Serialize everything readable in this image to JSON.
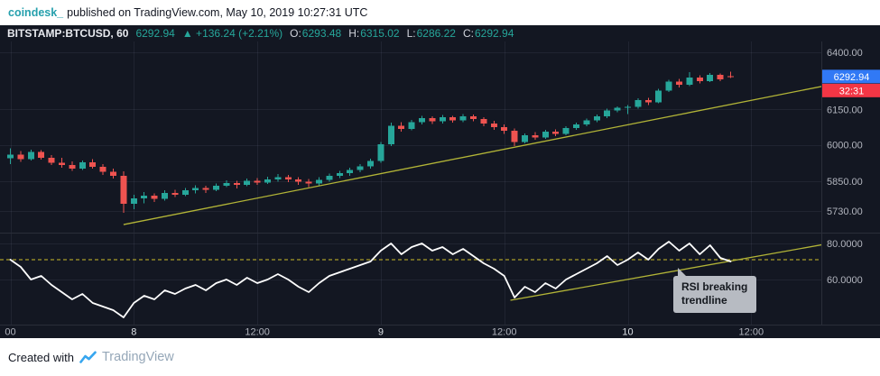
{
  "attribution": {
    "username": "coindesk_",
    "rest": "published on TradingView.com, May 10, 2019 10:27:31 UTC"
  },
  "legend": {
    "symbol": "BITSTAMP:BTCUSD, 60",
    "last": "6292.94",
    "change": "▲ +136.24 (+2.21%)",
    "ohlc": [
      {
        "label": "O:",
        "value": "6293.48"
      },
      {
        "label": "H:",
        "value": "6315.02"
      },
      {
        "label": "L:",
        "value": "6286.22"
      },
      {
        "label": "C:",
        "value": "6292.94"
      }
    ]
  },
  "tooltip": {
    "line1": "RSI breaking",
    "line2": "trendline"
  },
  "footer": {
    "created_with": "Created with",
    "brand": "TradingView"
  },
  "colors": {
    "bg": "#131722",
    "panel_bg": "#ffffff",
    "up": "#26a69a",
    "down": "#ef5350",
    "grid": "rgba(151,161,187,0.10)",
    "separator": "#2a2e39",
    "axis_text": "#b2b5be",
    "axis_text_bright": "#dde1e6",
    "trendline": "#b2b437",
    "rsi_line": "#ffffff",
    "rsi_band": "#cdbd2a",
    "price_badge_bg": "#3179f5",
    "countdown_badge_bg": "#f23645",
    "legend_green": "#26a69a",
    "username_teal": "#26a0ad",
    "tooltip_bg": "#b7bbc2",
    "tooltip_text": "#15191f",
    "tv_logo_blue": "#37a6ef",
    "tv_brand_text": "#95a7b8"
  },
  "chart_data": {
    "type": "candlestick+rsi",
    "symbol": "BITSTAMP:BTCUSD",
    "interval_minutes": 60,
    "price_scale": "log",
    "last_price": {
      "label": "6292.94",
      "value": 6292.94
    },
    "bar_countdown": "32:31",
    "price_axis_ticks": [
      {
        "label": "6400.00",
        "value": 6400
      },
      {
        "label": "6150.00",
        "value": 6150
      },
      {
        "label": "6000.00",
        "value": 6000
      },
      {
        "label": "5850.00",
        "value": 5850
      },
      {
        "label": "5730.00",
        "value": 5730
      }
    ],
    "time_axis_ticks": [
      {
        "label": "00",
        "index": 0,
        "major": false
      },
      {
        "label": "8",
        "index": 12,
        "major": true
      },
      {
        "label": "12:00",
        "index": 24,
        "major": false
      },
      {
        "label": "9",
        "index": 36,
        "major": true
      },
      {
        "label": "12:00",
        "index": 48,
        "major": false
      },
      {
        "label": "10",
        "index": 60,
        "major": true
      },
      {
        "label": "12:00",
        "index": 72,
        "major": false
      }
    ],
    "candles": [
      [
        5945,
        5985,
        5920,
        5960
      ],
      [
        5960,
        5975,
        5930,
        5940
      ],
      [
        5940,
        5980,
        5935,
        5970
      ],
      [
        5970,
        5978,
        5938,
        5946
      ],
      [
        5946,
        5958,
        5916,
        5926
      ],
      [
        5926,
        5946,
        5906,
        5916
      ],
      [
        5916,
        5932,
        5892,
        5902
      ],
      [
        5902,
        5936,
        5896,
        5928
      ],
      [
        5928,
        5941,
        5901,
        5909
      ],
      [
        5909,
        5921,
        5876,
        5888
      ],
      [
        5888,
        5901,
        5861,
        5872
      ],
      [
        5872,
        5890,
        5722,
        5758
      ],
      [
        5758,
        5796,
        5738,
        5781
      ],
      [
        5781,
        5806,
        5761,
        5792
      ],
      [
        5792,
        5801,
        5766,
        5778
      ],
      [
        5778,
        5813,
        5772,
        5803
      ],
      [
        5803,
        5816,
        5786,
        5795
      ],
      [
        5795,
        5823,
        5790,
        5813
      ],
      [
        5813,
        5833,
        5801,
        5822
      ],
      [
        5822,
        5831,
        5803,
        5815
      ],
      [
        5815,
        5841,
        5810,
        5832
      ],
      [
        5832,
        5853,
        5826,
        5843
      ],
      [
        5843,
        5851,
        5821,
        5835
      ],
      [
        5835,
        5861,
        5829,
        5852
      ],
      [
        5852,
        5863,
        5836,
        5845
      ],
      [
        5845,
        5869,
        5839,
        5857
      ],
      [
        5857,
        5879,
        5849,
        5867
      ],
      [
        5867,
        5876,
        5846,
        5858
      ],
      [
        5858,
        5866,
        5836,
        5848
      ],
      [
        5848,
        5859,
        5826,
        5840
      ],
      [
        5840,
        5866,
        5833,
        5856
      ],
      [
        5856,
        5881,
        5849,
        5872
      ],
      [
        5872,
        5893,
        5863,
        5883
      ],
      [
        5883,
        5906,
        5873,
        5896
      ],
      [
        5896,
        5921,
        5886,
        5911
      ],
      [
        5911,
        5943,
        5901,
        5933
      ],
      [
        5933,
        6013,
        5926,
        6003
      ],
      [
        6003,
        6093,
        5996,
        6081
      ],
      [
        6081,
        6096,
        6056,
        6068
      ],
      [
        6068,
        6106,
        6061,
        6096
      ],
      [
        6096,
        6123,
        6086,
        6113
      ],
      [
        6113,
        6121,
        6089,
        6099
      ],
      [
        6099,
        6126,
        6091,
        6116
      ],
      [
        6116,
        6123,
        6093,
        6104
      ],
      [
        6104,
        6131,
        6096,
        6121
      ],
      [
        6121,
        6129,
        6099,
        6109
      ],
      [
        6109,
        6116,
        6079,
        6091
      ],
      [
        6091,
        6101,
        6063,
        6075
      ],
      [
        6075,
        6086,
        6046,
        6059
      ],
      [
        6059,
        6069,
        5996,
        6013
      ],
      [
        6013,
        6049,
        6006,
        6041
      ],
      [
        6041,
        6053,
        6021,
        6031
      ],
      [
        6031,
        6063,
        6026,
        6055
      ],
      [
        6055,
        6066,
        6036,
        6047
      ],
      [
        6047,
        6079,
        6041,
        6071
      ],
      [
        6071,
        6093,
        6063,
        6086
      ],
      [
        6086,
        6111,
        6079,
        6103
      ],
      [
        6103,
        6129,
        6096,
        6121
      ],
      [
        6121,
        6153,
        6113,
        6146
      ],
      [
        6146,
        6163,
        6139,
        6157
      ],
      [
        6157,
        6169,
        6131,
        6161
      ],
      [
        6161,
        6199,
        6153,
        6191
      ],
      [
        6191,
        6201,
        6169,
        6181
      ],
      [
        6181,
        6239,
        6176,
        6231
      ],
      [
        6231,
        6279,
        6226,
        6271
      ],
      [
        6271,
        6283,
        6246,
        6257
      ],
      [
        6257,
        6312,
        6251,
        6289
      ],
      [
        6289,
        6299,
        6263,
        6273
      ],
      [
        6273,
        6309,
        6269,
        6301
      ],
      [
        6301,
        6307,
        6273,
        6281
      ],
      [
        6293.48,
        6315.02,
        6286.22,
        6292.94
      ]
    ],
    "rsi": {
      "values": [
        71,
        67,
        60,
        62,
        57,
        53,
        49,
        52,
        47,
        45,
        43,
        39,
        47,
        51,
        49,
        54,
        52,
        55,
        57,
        54,
        58,
        60,
        57,
        61,
        58,
        60,
        63,
        60,
        56,
        53,
        58,
        62,
        64,
        66,
        68,
        70,
        76,
        80,
        74,
        78,
        80,
        76,
        78,
        74,
        77,
        73,
        69,
        66,
        62,
        50,
        56,
        53,
        58,
        55,
        60,
        63,
        66,
        69,
        73,
        68,
        71,
        75,
        71,
        77,
        81,
        76,
        80,
        74,
        79,
        72,
        70
      ],
      "axis_ticks": [
        {
          "label": "80.0000",
          "value": 80
        },
        {
          "label": "60.0000",
          "value": 60
        }
      ],
      "dashed_level": 71
    },
    "trendlines": {
      "price": {
        "points": [
          {
            "index": 11,
            "price": 5676
          },
          {
            "index": 84.5,
            "price": 6300
          }
        ]
      },
      "rsi": {
        "points": [
          {
            "index": 48.6,
            "value": 48.5
          },
          {
            "index": 84.5,
            "value": 85
          }
        ]
      }
    }
  }
}
